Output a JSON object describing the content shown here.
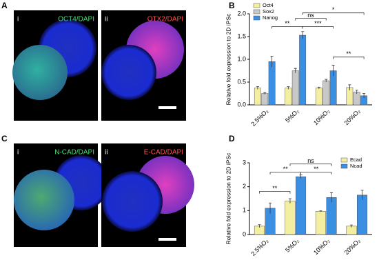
{
  "panels": {
    "a": {
      "letter": "A",
      "left_index": "i",
      "left_label": "OCT4/DAPI",
      "right_index": "ii",
      "right_label": "OTX2/DAPI"
    },
    "c": {
      "letter": "C",
      "left_index": "i",
      "left_label": "N-CAD/DAPI",
      "right_index": "ii",
      "right_label": "E-CAD/DAPI"
    }
  },
  "chart_data": [
    {
      "type": "bar",
      "letter": "B",
      "ylabel": "Relative fold expression to 2D iPSc",
      "categories": [
        "2.5%O₂",
        "5%O₂",
        "10%O₂",
        "20%O₂"
      ],
      "series": [
        {
          "name": "Oct4",
          "color": "#f3eea0",
          "values": [
            0.37,
            0.37,
            0.37,
            0.38
          ],
          "errors": [
            0.03,
            0.03,
            0.02,
            0.06
          ]
        },
        {
          "name": "Sox2",
          "color": "#c8c8c8",
          "values": [
            0.25,
            0.75,
            0.53,
            0.28
          ],
          "errors": [
            0.02,
            0.05,
            0.03,
            0.04
          ]
        },
        {
          "name": "Nanog",
          "color": "#3b8fe3",
          "values": [
            0.95,
            1.53,
            0.75,
            0.2
          ],
          "errors": [
            0.12,
            0.08,
            0.12,
            0.05
          ]
        }
      ],
      "ylim": [
        0,
        2
      ],
      "yticks": [
        {
          "value": 0,
          "label": "0.0"
        },
        {
          "value": 0.5,
          "label": "0.5"
        },
        {
          "value": 1,
          "label": "1.0"
        },
        {
          "value": 1.5,
          "label": "1.5"
        },
        {
          "value": 2,
          "label": "2.0"
        }
      ],
      "legend": "upper left",
      "annotations": [
        "**",
        "ns",
        "***",
        "*",
        "**"
      ]
    },
    {
      "type": "bar",
      "letter": "D",
      "ylabel": "Relative fold expression to 2D iPSc",
      "categories": [
        "2.5%O₂",
        "5%O₂",
        "10%O₂",
        "20%O₂"
      ],
      "series": [
        {
          "name": "Ecad",
          "color": "#f3eea0",
          "values": [
            0.35,
            1.4,
            0.97,
            0.35
          ],
          "errors": [
            0.06,
            0.1,
            0.02,
            0.05
          ]
        },
        {
          "name": "Ncad",
          "color": "#3b8fe3",
          "values": [
            1.1,
            2.42,
            1.55,
            1.65
          ],
          "errors": [
            0.22,
            0.07,
            0.2,
            0.2
          ]
        }
      ],
      "ylim": [
        0,
        3
      ],
      "yticks": [
        0,
        1,
        2,
        3
      ],
      "legend": "upper right",
      "annotations": [
        "ns",
        "**",
        "**",
        "**"
      ]
    }
  ]
}
